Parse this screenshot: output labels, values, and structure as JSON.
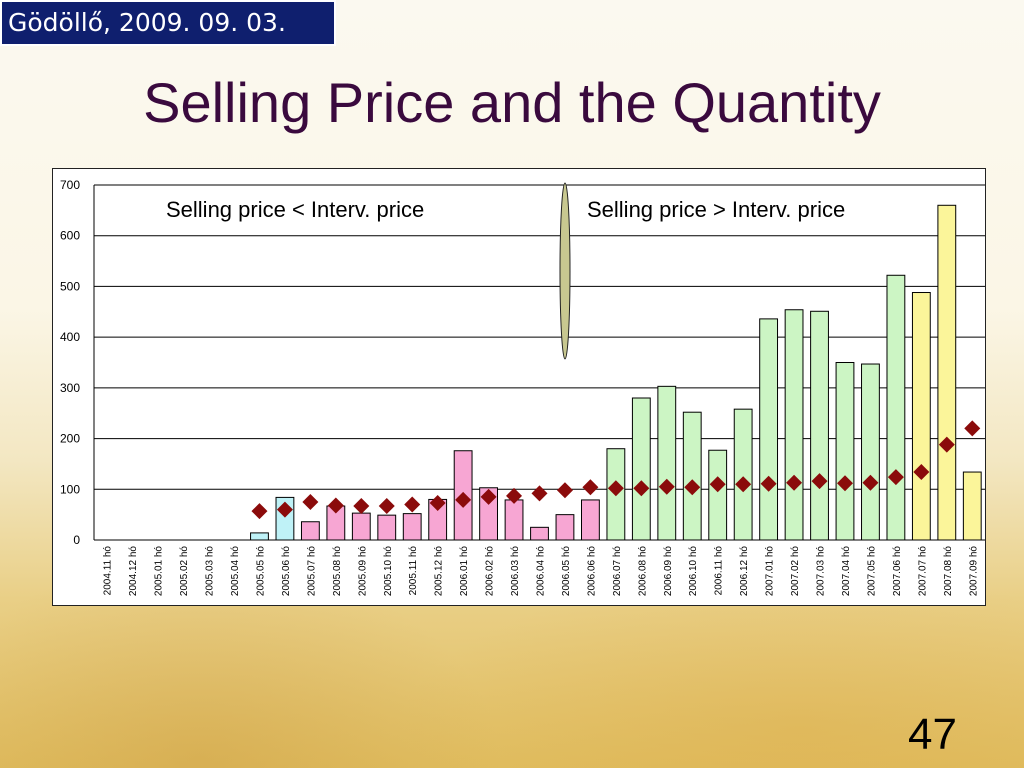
{
  "header": {
    "date_label": "Gödöllő, 2009. 09. 03."
  },
  "slide": {
    "title": "Selling Price and the Quantity",
    "page_number": "47"
  },
  "chart_data": {
    "type": "bar",
    "title": "",
    "xlabel": "",
    "ylabel": "",
    "ylim": [
      0,
      700
    ],
    "yticks": [
      0,
      100,
      200,
      300,
      400,
      500,
      600,
      700
    ],
    "grid": true,
    "categories": [
      "2004.11 hó",
      "2004.12 hó",
      "2005.01 hó",
      "2005.02 hó",
      "2005.03 hó",
      "2005.04 hó",
      "2005.05 hó",
      "2005.06 hó",
      "2005.07 hó",
      "2005.08 hó",
      "2005.09 hó",
      "2005.10 hó",
      "2005.11 hó",
      "2005.12 hó",
      "2006.01 hó",
      "2006.02 hó",
      "2006.03 hó",
      "2006.04 hó",
      "2006.05 hó",
      "2006.06 hó",
      "2006.07 hó",
      "2006.08 hó",
      "2006.09 hó",
      "2006.10 hó",
      "2006.11 hó",
      "2006.12 hó",
      "2007.01 hó",
      "2007.02 hó",
      "2007.03 hó",
      "2007.04 hó",
      "2007.05 hó",
      "2007.06 hó",
      "2007.07 hó",
      "2007.08 hó",
      "2007.09 hó"
    ],
    "series": [
      {
        "kind": "bar",
        "values": [
          0,
          0,
          0,
          0,
          0,
          0,
          14,
          84,
          36,
          67,
          53,
          49,
          52,
          80,
          176,
          103,
          79,
          25,
          50,
          79,
          180,
          280,
          303,
          252,
          177,
          258,
          436,
          454,
          451,
          350,
          347,
          522,
          488,
          660,
          134
        ],
        "colors": [
          "#bff2f7",
          "#bff2f7",
          "#bff2f7",
          "#bff2f7",
          "#bff2f7",
          "#bff2f7",
          "#bff2f7",
          "#bff2f7",
          "#f7a6d3",
          "#f7a6d3",
          "#f7a6d3",
          "#f7a6d3",
          "#f7a6d3",
          "#f7a6d3",
          "#f7a6d3",
          "#f7a6d3",
          "#f7a6d3",
          "#f7a6d3",
          "#f7a6d3",
          "#f7a6d3",
          "#ccf5c4",
          "#ccf5c4",
          "#ccf5c4",
          "#ccf5c4",
          "#ccf5c4",
          "#ccf5c4",
          "#ccf5c4",
          "#ccf5c4",
          "#ccf5c4",
          "#ccf5c4",
          "#ccf5c4",
          "#ccf5c4",
          "#fbf59a",
          "#fbf59a",
          "#fbf59a"
        ]
      },
      {
        "kind": "scatter",
        "marker": "diamond",
        "color": "#8b0b0b",
        "values": [
          null,
          null,
          null,
          null,
          null,
          null,
          57,
          60,
          75,
          68,
          67,
          67,
          70,
          73,
          79,
          85,
          87,
          92,
          98,
          104,
          102,
          102,
          105,
          104,
          110,
          110,
          111,
          113,
          116,
          112,
          113,
          124,
          134,
          188,
          220
        ]
      }
    ],
    "annotations": {
      "left_label": "Selling price < Interv. price",
      "right_label": "Selling price > Interv. price"
    },
    "divider_color": "#c8c890"
  }
}
